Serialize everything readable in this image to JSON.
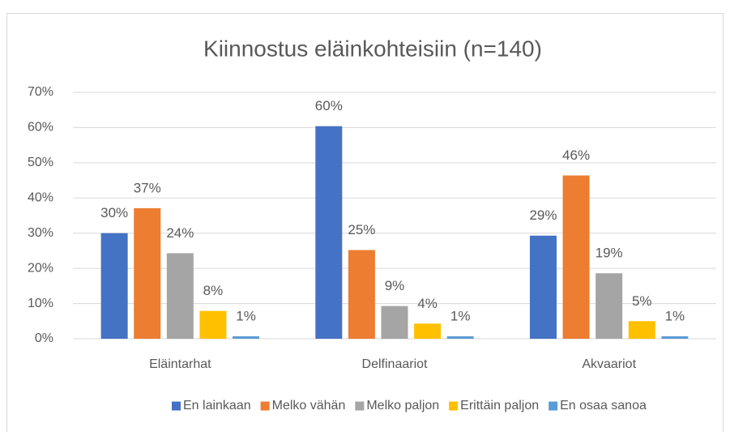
{
  "chart_data": {
    "type": "bar",
    "title": "Kiinnostus eläinkohteisiin (n=140)",
    "categories": [
      "Eläintarhat",
      "Delfinaariot",
      "Akvaariot"
    ],
    "series": [
      {
        "name": "En lainkaan",
        "color": "#4472c4",
        "values": [
          30.0,
          60.4,
          29.3
        ],
        "value_labels": [
          "30%",
          "60%",
          "29%"
        ]
      },
      {
        "name": "Melko vähän",
        "color": "#ed7d31",
        "values": [
          37.1,
          25.2,
          46.4
        ],
        "value_labels": [
          "37%",
          "25%",
          "46%"
        ]
      },
      {
        "name": "Melko paljon",
        "color": "#a5a5a5",
        "values": [
          24.3,
          9.3,
          18.6
        ],
        "value_labels": [
          "24%",
          "9%",
          "19%"
        ]
      },
      {
        "name": "Erittäin paljon",
        "color": "#ffc000",
        "values": [
          7.9,
          4.3,
          5.0
        ],
        "value_labels": [
          "8%",
          "4%",
          "5%"
        ]
      },
      {
        "name": "En osaa sanoa",
        "color": "#5b9bd5",
        "values": [
          0.7,
          0.7,
          0.7
        ],
        "value_labels": [
          "1%",
          "1%",
          "1%"
        ]
      }
    ],
    "ylim": [
      0,
      70
    ],
    "yticks": [
      {
        "value": 0,
        "label": "0%"
      },
      {
        "value": 10,
        "label": "10%"
      },
      {
        "value": 20,
        "label": "20%"
      },
      {
        "value": 30,
        "label": "30%"
      },
      {
        "value": 40,
        "label": "40%"
      },
      {
        "value": 50,
        "label": "50%"
      },
      {
        "value": 60,
        "label": "60%"
      },
      {
        "value": 70,
        "label": "70%"
      }
    ],
    "grid": true,
    "legend": "bottom"
  }
}
